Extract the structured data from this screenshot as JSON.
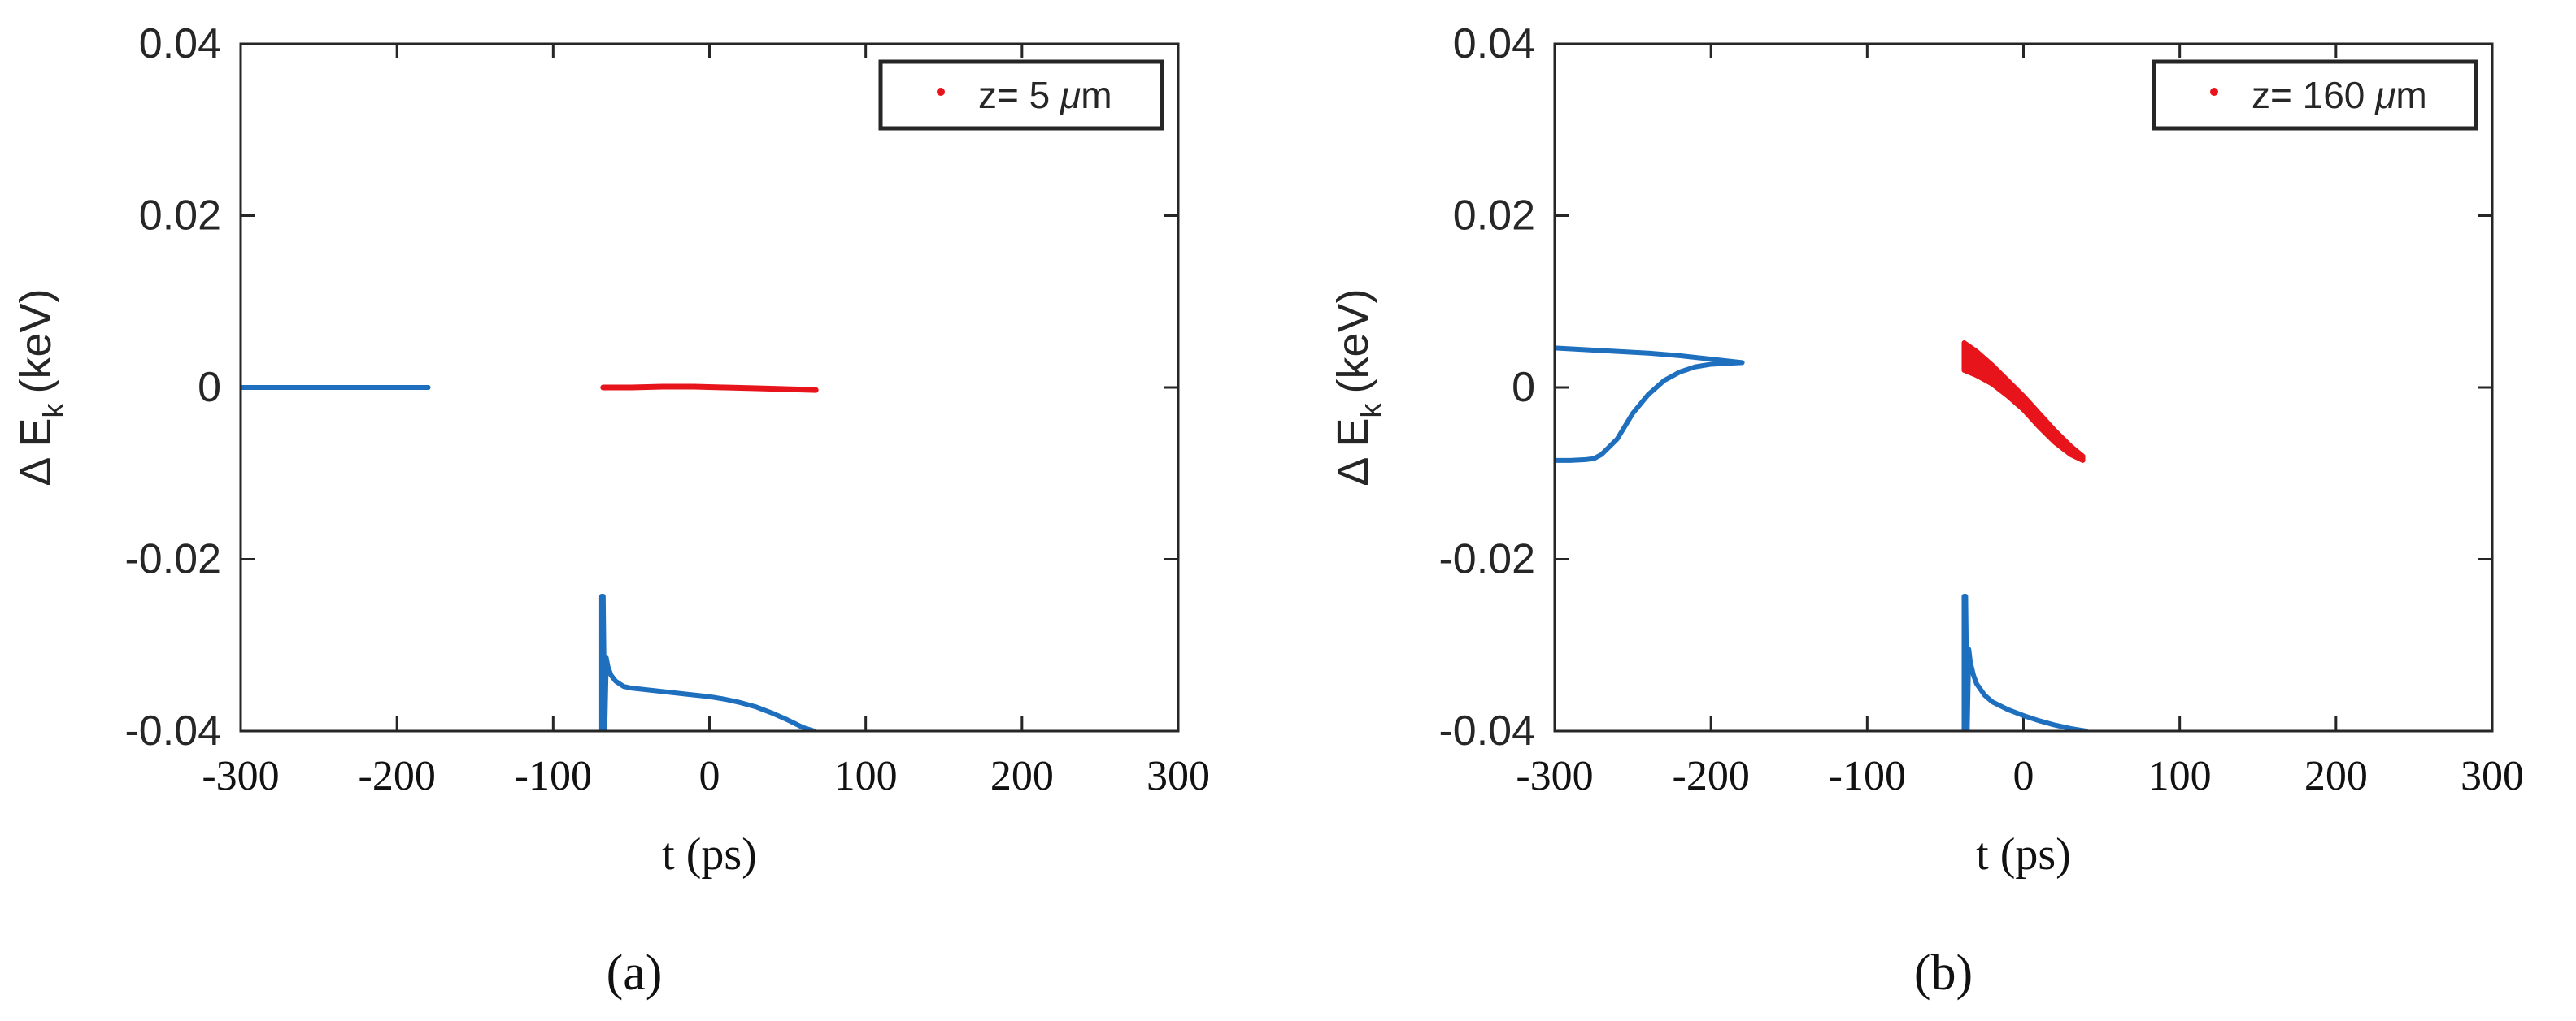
{
  "chart_data": [
    {
      "type": "line",
      "panel_label": "(a)",
      "xlabel": "t (ps)",
      "ylabel_main": "Δ E",
      "ylabel_sub": "k",
      "ylabel_unit": "(keV)",
      "xlim": [
        -300,
        300
      ],
      "ylim": [
        -0.04,
        0.04
      ],
      "xticks": [
        -300,
        -200,
        -100,
        0,
        100,
        200,
        300
      ],
      "yticks": [
        0.04,
        0.02,
        0,
        -0.02,
        -0.04
      ],
      "xtick_labels": [
        "-300",
        "-200",
        "-100",
        "0",
        "100",
        "200",
        "300"
      ],
      "ytick_labels": [
        "0.04",
        "0.02",
        "0",
        "-0.02",
        "-0.04"
      ],
      "grid": false,
      "legend_position": "top-right",
      "legend": {
        "prefix": "z= 5 ",
        "mu": "μ",
        "unit": "m"
      },
      "series": [
        {
          "kind": "line",
          "color": "#1f6fbf",
          "segments": [
            {
              "x": [
                -300,
                -280,
                -260,
                -240,
                -220,
                -200,
                -180
              ],
              "y": [
                0,
                0,
                0,
                0,
                0,
                0,
                0
              ]
            },
            {
              "x": [
                -69,
                -69,
                -68,
                -67,
                -66,
                -65,
                -63,
                -60,
                -55,
                -50,
                -40,
                -30,
                -20,
                -10,
                0,
                10,
                20,
                30,
                40,
                50,
                60,
                67
              ],
              "y": [
                -0.04,
                -0.0243,
                -0.0243,
                -0.04,
                -0.0315,
                -0.0325,
                -0.0335,
                -0.0342,
                -0.0348,
                -0.035,
                -0.0352,
                -0.0354,
                -0.0356,
                -0.0358,
                -0.036,
                -0.0363,
                -0.0367,
                -0.0372,
                -0.0379,
                -0.0387,
                -0.0396,
                -0.04
              ]
            }
          ]
        },
        {
          "kind": "points",
          "color": "#e8141b",
          "segments": [
            {
              "x": [
                -68,
                -50,
                -30,
                -10,
                10,
                30,
                50,
                68
              ],
              "y": [
                0,
                0,
                0.0001,
                0.0001,
                0,
                -0.0001,
                -0.0002,
                -0.0003
              ]
            }
          ]
        }
      ]
    },
    {
      "type": "line",
      "panel_label": "(b)",
      "xlabel": "t (ps)",
      "ylabel_main": "Δ E",
      "ylabel_sub": "k",
      "ylabel_unit": "(keV)",
      "xlim": [
        -300,
        300
      ],
      "ylim": [
        -0.04,
        0.04
      ],
      "xticks": [
        -300,
        -200,
        -100,
        0,
        100,
        200,
        300
      ],
      "yticks": [
        0.04,
        0.02,
        0,
        -0.02,
        -0.04
      ],
      "xtick_labels": [
        "-300",
        "-200",
        "-100",
        "0",
        "100",
        "200",
        "300"
      ],
      "ytick_labels": [
        "0.04",
        "0.02",
        "0",
        "-0.02",
        "-0.04"
      ],
      "grid": false,
      "legend_position": "top-right",
      "legend": {
        "prefix": "z= 160 ",
        "mu": "μ",
        "unit": "m"
      },
      "series": [
        {
          "kind": "line",
          "color": "#1f6fbf",
          "segments": [
            {
              "x": [
                -300,
                -280,
                -260,
                -240,
                -220,
                -200,
                -190,
                -180,
                -180,
                -190,
                -200,
                -210,
                -220,
                -230,
                -240,
                -250,
                -260,
                -270,
                -275,
                -280,
                -290,
                -300
              ],
              "y": [
                0.0046,
                0.0044,
                0.0042,
                0.004,
                0.0037,
                0.0033,
                0.0031,
                0.0029,
                0.0029,
                0.0028,
                0.0027,
                0.0024,
                0.0018,
                0.0008,
                -0.0008,
                -0.003,
                -0.006,
                -0.0078,
                -0.0083,
                -0.0084,
                -0.0085,
                -0.0085
              ]
            },
            {
              "x": [
                -38,
                -38,
                -37,
                -36,
                -35,
                -34,
                -32,
                -30,
                -25,
                -20,
                -10,
                0,
                10,
                20,
                30,
                40
              ],
              "y": [
                -0.04,
                -0.0243,
                -0.0243,
                -0.04,
                -0.0305,
                -0.032,
                -0.0335,
                -0.0345,
                -0.0358,
                -0.0366,
                -0.0375,
                -0.0382,
                -0.0388,
                -0.0393,
                -0.0397,
                -0.04
              ]
            }
          ]
        },
        {
          "kind": "band",
          "color": "#e8141b",
          "segments": [
            {
              "x": [
                -38,
                -30,
                -20,
                -10,
                0,
                10,
                20,
                30,
                38
              ],
              "y_upper": [
                0.0052,
                0.0042,
                0.0026,
                0.0008,
                -0.001,
                -0.003,
                -0.005,
                -0.0068,
                -0.008
              ],
              "y_lower": [
                0.002,
                0.0014,
                0.0004,
                -0.001,
                -0.0026,
                -0.0046,
                -0.0064,
                -0.0078,
                -0.0085
              ]
            }
          ]
        }
      ]
    }
  ]
}
